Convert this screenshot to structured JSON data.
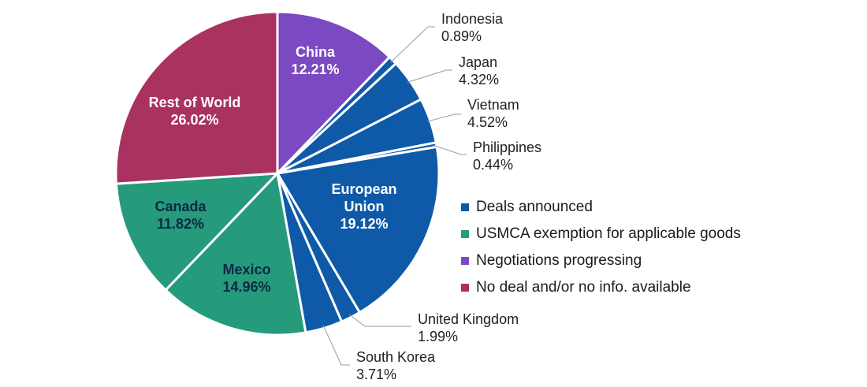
{
  "chart_data": {
    "type": "pie",
    "slices": [
      {
        "label": "China",
        "value": 12.21,
        "value_label": "12.21%",
        "group": "negotiations"
      },
      {
        "label": "Indonesia",
        "value": 0.89,
        "value_label": "0.89%",
        "group": "deals"
      },
      {
        "label": "Japan",
        "value": 4.32,
        "value_label": "4.32%",
        "group": "deals"
      },
      {
        "label": "Vietnam",
        "value": 4.52,
        "value_label": "4.52%",
        "group": "deals"
      },
      {
        "label": "Philippines",
        "value": 0.44,
        "value_label": "0.44%",
        "group": "deals"
      },
      {
        "label": "European Union",
        "value": 19.12,
        "value_label": "19.12%",
        "group": "deals"
      },
      {
        "label": "United Kingdom",
        "value": 1.99,
        "value_label": "1.99%",
        "group": "deals"
      },
      {
        "label": "South Korea",
        "value": 3.71,
        "value_label": "3.71%",
        "group": "deals"
      },
      {
        "label": "Mexico",
        "value": 14.96,
        "value_label": "14.96%",
        "group": "usmca"
      },
      {
        "label": "Canada",
        "value": 11.82,
        "value_label": "11.82%",
        "group": "usmca"
      },
      {
        "label": "Rest of World",
        "value": 26.02,
        "value_label": "26.02%",
        "group": "nodeal"
      }
    ],
    "legend_placement": "right",
    "legend": [
      {
        "key": "deals",
        "label": "Deals announced",
        "color": "#0f5aa8"
      },
      {
        "key": "usmca",
        "label": "USMCA exemption for applicable goods",
        "color": "#259b7c"
      },
      {
        "key": "negotiations",
        "label": "Negotiations progressing",
        "color": "#7b49c1"
      },
      {
        "key": "nodeal",
        "label": "No deal and/or no info. available",
        "color": "#aa3260"
      }
    ],
    "label_colors": {
      "inside_on_dark": "#ffffff",
      "inside_on_green": "#0e2743",
      "outside": "#222222"
    }
  }
}
